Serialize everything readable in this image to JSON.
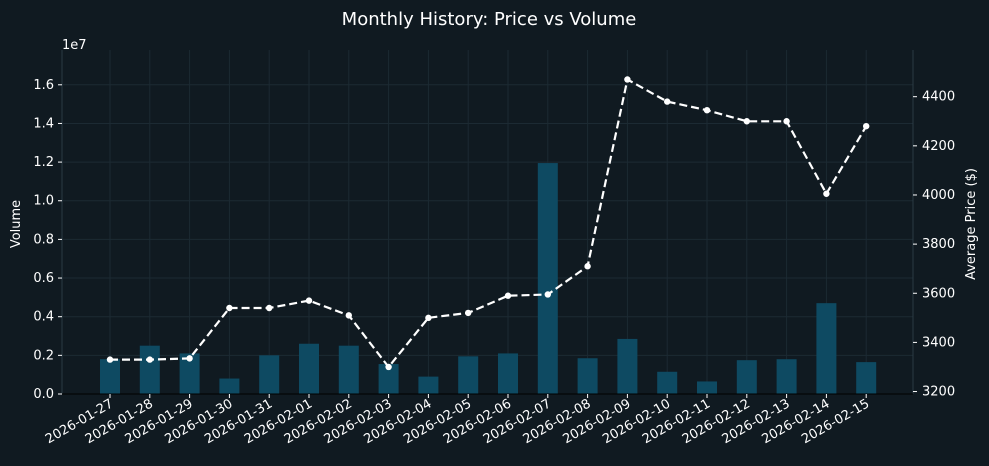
{
  "chart_data": {
    "type": "bar+line",
    "title": "Monthly History: Price vs Volume",
    "categories": [
      "2026-01-27",
      "2026-01-28",
      "2026-01-29",
      "2026-01-30",
      "2026-01-31",
      "2026-02-01",
      "2026-02-02",
      "2026-02-03",
      "2026-02-04",
      "2026-02-05",
      "2026-02-06",
      "2026-02-07",
      "2026-02-08",
      "2026-02-09",
      "2026-02-10",
      "2026-02-11",
      "2026-02-12",
      "2026-02-13",
      "2026-02-14",
      "2026-02-15"
    ],
    "left_axis": {
      "label": "Volume",
      "offset_text": "1e7",
      "ylim": [
        0,
        17800000
      ],
      "ticks": [
        0,
        2000000,
        4000000,
        6000000,
        8000000,
        10000000,
        12000000,
        14000000,
        16000000
      ],
      "tick_labels": [
        "0.0",
        "0.2",
        "0.4",
        "0.6",
        "0.8",
        "1.0",
        "1.2",
        "1.4",
        "1.6"
      ]
    },
    "right_axis": {
      "label": "Average Price ($)",
      "ylim": [
        3190,
        4590
      ],
      "ticks": [
        3200,
        3400,
        3600,
        3800,
        4000,
        4200,
        4400
      ]
    },
    "series": [
      {
        "kind": "bar",
        "axis": "left",
        "values": [
          1800000,
          2500000,
          2100000,
          800000,
          2000000,
          2600000,
          2500000,
          1550000,
          900000,
          1950000,
          2100000,
          11950000,
          1850000,
          2850000,
          1150000,
          650000,
          1750000,
          1800000,
          4700000,
          1650000
        ]
      },
      {
        "kind": "line",
        "axis": "right",
        "values": [
          3330,
          3330,
          3335,
          3540,
          3540,
          3570,
          3510,
          3300,
          3500,
          3520,
          3590,
          3595,
          3710,
          4470,
          4380,
          4345,
          4300,
          4300,
          4005,
          4280
        ]
      }
    ],
    "grid": true,
    "colors": {
      "background": "#101a21",
      "bar": "#0e4a62",
      "line": "#ffffff",
      "grid": "#1c2a33",
      "volume_label": "#2bb8e0"
    }
  }
}
